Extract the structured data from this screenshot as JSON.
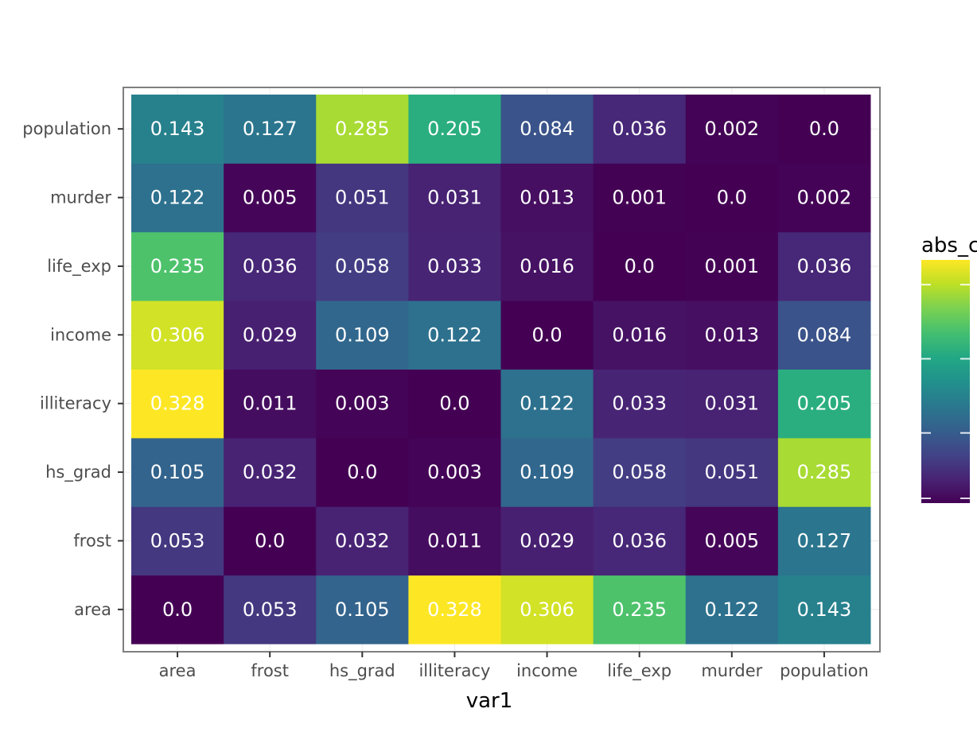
{
  "chart_data": {
    "type": "heatmap",
    "xlabel": "var1",
    "ylabel": "",
    "legend_title": "abs_c",
    "x_categories": [
      "area",
      "frost",
      "hs_grad",
      "illiteracy",
      "income",
      "life_exp",
      "murder",
      "population"
    ],
    "y_categories": [
      "area",
      "frost",
      "hs_grad",
      "illiteracy",
      "income",
      "life_exp",
      "murder",
      "population"
    ],
    "values": [
      [
        0.0,
        0.053,
        0.105,
        0.328,
        0.306,
        0.235,
        0.122,
        0.143
      ],
      [
        0.053,
        0.0,
        0.032,
        0.011,
        0.029,
        0.036,
        0.005,
        0.127
      ],
      [
        0.105,
        0.032,
        0.0,
        0.003,
        0.109,
        0.058,
        0.051,
        0.285
      ],
      [
        0.328,
        0.011,
        0.003,
        0.0,
        0.122,
        0.033,
        0.031,
        0.205
      ],
      [
        0.306,
        0.029,
        0.109,
        0.122,
        0.0,
        0.016,
        0.013,
        0.084
      ],
      [
        0.235,
        0.036,
        0.058,
        0.033,
        0.016,
        0.0,
        0.001,
        0.036
      ],
      [
        0.122,
        0.005,
        0.051,
        0.031,
        0.013,
        0.001,
        0.0,
        0.002
      ],
      [
        0.143,
        0.127,
        0.285,
        0.205,
        0.084,
        0.036,
        0.002,
        0.0
      ]
    ],
    "labels": [
      [
        "0.0",
        "0.053",
        "0.105",
        "0.328",
        "0.306",
        "0.235",
        "0.122",
        "0.143"
      ],
      [
        "0.053",
        "0.0",
        "0.032",
        "0.011",
        "0.029",
        "0.036",
        "0.005",
        "0.127"
      ],
      [
        "0.105",
        "0.032",
        "0.0",
        "0.003",
        "0.109",
        "0.058",
        "0.051",
        "0.285"
      ],
      [
        "0.328",
        "0.011",
        "0.003",
        "0.0",
        "0.122",
        "0.033",
        "0.031",
        "0.205"
      ],
      [
        "0.306",
        "0.029",
        "0.109",
        "0.122",
        "0.0",
        "0.016",
        "0.013",
        "0.084"
      ],
      [
        "0.235",
        "0.036",
        "0.058",
        "0.033",
        "0.016",
        "0.0",
        "0.001",
        "0.036"
      ],
      [
        "0.122",
        "0.005",
        "0.051",
        "0.031",
        "0.013",
        "0.001",
        "0.0",
        "0.002"
      ],
      [
        "0.143",
        "0.127",
        "0.285",
        "0.205",
        "0.084",
        "0.036",
        "0.002",
        "0.0"
      ]
    ],
    "color_scale": "viridis",
    "value_range": [
      0.0,
      0.328
    ],
    "grid": true
  }
}
